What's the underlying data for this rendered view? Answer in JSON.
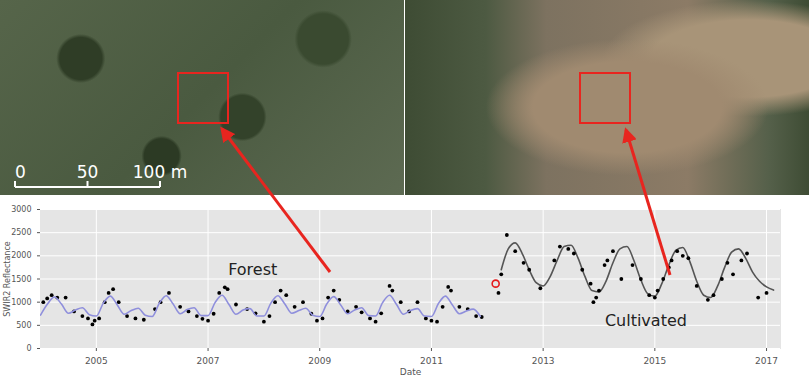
{
  "chart_data": {
    "type": "line",
    "x_label": "Date",
    "y_label": "SWIR2 Reflectance",
    "xlim": [
      2004,
      2017.25
    ],
    "xticks": [
      2005,
      2007,
      2009,
      2011,
      2013,
      2015,
      2017
    ],
    "ylim": [
      0,
      3000
    ],
    "yticks": [
      0,
      500,
      1000,
      1500,
      2000,
      2500,
      3000
    ],
    "grid": true,
    "annotations": [
      {
        "text": "Forest",
        "x": 2007.8,
        "y": 1700
      },
      {
        "text": "Cultivated",
        "x": 2014.84,
        "y": 600
      }
    ],
    "series": [
      {
        "type": "scatter",
        "marker": "circle",
        "color": "#000000",
        "x": [
          2004.05,
          2004.12,
          2004.2,
          2004.3,
          2004.45,
          2004.6,
          2004.75,
          2004.85,
          2004.93,
          2004.97,
          2005.05,
          2005.15,
          2005.22,
          2005.3,
          2005.4,
          2005.55,
          2005.7,
          2005.85,
          2006.05,
          2006.15,
          2006.3,
          2006.5,
          2006.65,
          2006.8,
          2006.9,
          2007.0,
          2007.1,
          2007.2,
          2007.3,
          2007.35,
          2007.5,
          2007.7,
          2007.85,
          2008.0,
          2008.1,
          2008.2,
          2008.3,
          2008.4,
          2008.55,
          2008.7,
          2008.85,
          2008.95,
          2009.05,
          2009.15,
          2009.25,
          2009.35,
          2009.5,
          2009.65,
          2009.75,
          2009.9,
          2010.0,
          2010.1,
          2010.25,
          2010.3,
          2010.45,
          2010.6,
          2010.75,
          2010.9,
          2011.0,
          2011.1,
          2011.2,
          2011.3,
          2011.35,
          2011.5,
          2011.65,
          2011.8,
          2011.9
        ],
        "values": [
          1000,
          1080,
          1150,
          1100,
          1100,
          800,
          700,
          650,
          520,
          600,
          650,
          1000,
          1200,
          1280,
          1000,
          700,
          650,
          620,
          850,
          1000,
          1200,
          900,
          800,
          700,
          640,
          600,
          750,
          1200,
          1320,
          1280,
          950,
          850,
          760,
          580,
          700,
          1000,
          1250,
          1150,
          900,
          1000,
          750,
          600,
          650,
          1100,
          1250,
          1050,
          800,
          900,
          780,
          650,
          580,
          760,
          1350,
          1250,
          1000,
          800,
          1000,
          650,
          600,
          580,
          900,
          1330,
          1250,
          900,
          850,
          700,
          680
        ]
      },
      {
        "type": "line",
        "color": "#8f8fdc",
        "x": [
          2004,
          2004.125,
          2004.25,
          2004.375,
          2004.5,
          2004.625,
          2004.75,
          2004.875,
          2005,
          2005.125,
          2005.25,
          2005.375,
          2005.5,
          2005.625,
          2005.75,
          2005.875,
          2006,
          2006.125,
          2006.25,
          2006.375,
          2006.5,
          2006.625,
          2006.75,
          2006.875,
          2007,
          2007.125,
          2007.25,
          2007.375,
          2007.5,
          2007.625,
          2007.75,
          2007.875,
          2008,
          2008.125,
          2008.25,
          2008.375,
          2008.5,
          2008.625,
          2008.75,
          2008.875,
          2009,
          2009.125,
          2009.25,
          2009.375,
          2009.5,
          2009.625,
          2009.75,
          2009.875,
          2010,
          2010.125,
          2010.25,
          2010.375,
          2010.5,
          2010.625,
          2010.75,
          2010.875,
          2011,
          2011.125,
          2011.25,
          2011.375,
          2011.5,
          2011.625,
          2011.75,
          2011.875
        ],
        "values": [
          720,
          960,
          1110,
          960,
          760,
          830,
          880,
          730,
          700,
          980,
          1130,
          940,
          740,
          820,
          870,
          720,
          690,
          970,
          1140,
          960,
          750,
          840,
          880,
          710,
          710,
          990,
          1150,
          950,
          740,
          830,
          860,
          700,
          700,
          980,
          1140,
          960,
          760,
          820,
          870,
          720,
          690,
          960,
          1120,
          940,
          750,
          830,
          880,
          710,
          700,
          990,
          1150,
          950,
          740,
          820,
          860,
          700,
          690,
          970,
          1130,
          940,
          750,
          810,
          850,
          690
        ]
      },
      {
        "type": "line",
        "color": "#555555",
        "x": [
          2012.25,
          2012.375,
          2012.5,
          2012.625,
          2012.75,
          2012.875,
          2013,
          2013.125,
          2013.25,
          2013.375,
          2013.5,
          2013.625,
          2013.75,
          2013.875,
          2014,
          2014.125,
          2014.25,
          2014.375,
          2014.5,
          2014.625,
          2014.75,
          2014.875,
          2015,
          2015.125,
          2015.25,
          2015.375,
          2015.5,
          2015.625,
          2015.75,
          2015.875,
          2016,
          2016.125,
          2016.25,
          2016.375,
          2016.5,
          2016.625,
          2016.75,
          2016.875,
          2017,
          2017.125
        ],
        "values": [
          1700,
          2150,
          2280,
          2050,
          1700,
          1420,
          1350,
          1550,
          1900,
          2200,
          2230,
          1950,
          1550,
          1250,
          1220,
          1450,
          1850,
          2150,
          2200,
          1900,
          1480,
          1180,
          1130,
          1400,
          1800,
          2120,
          2180,
          1880,
          1450,
          1150,
          1100,
          1350,
          1750,
          2080,
          2150,
          1950,
          1650,
          1450,
          1330,
          1260
        ]
      },
      {
        "type": "scatter",
        "marker": "circle",
        "color": "#000000",
        "x": [
          2012.2,
          2012.25,
          2012.35,
          2012.5,
          2012.65,
          2012.75,
          2012.95,
          2013.2,
          2013.3,
          2013.45,
          2013.55,
          2013.7,
          2013.85,
          2013.9,
          2013.95,
          2014.0,
          2014.1,
          2014.15,
          2014.25,
          2014.4,
          2014.6,
          2014.75,
          2014.9,
          2015.0,
          2015.05,
          2015.15,
          2015.25,
          2015.3,
          2015.4,
          2015.5,
          2015.6,
          2015.75,
          2015.95,
          2016.05,
          2016.2,
          2016.3,
          2016.4,
          2016.55,
          2016.65,
          2016.85,
          2017.0
        ],
        "values": [
          1200,
          1600,
          2450,
          2100,
          1850,
          1700,
          1300,
          1900,
          2200,
          2150,
          2050,
          1700,
          1400,
          1000,
          1100,
          1250,
          1800,
          1900,
          2100,
          1500,
          1800,
          1500,
          1150,
          1100,
          1250,
          1500,
          1750,
          1900,
          2100,
          2000,
          1950,
          1350,
          1050,
          1150,
          1500,
          1850,
          1600,
          1900,
          2050,
          1100,
          1200
        ]
      },
      {
        "type": "scatter",
        "marker": "open_circle",
        "color": "#e41a1c",
        "x": [
          2012.15
        ],
        "values": [
          1400
        ]
      }
    ]
  },
  "scale_bar": {
    "ticks": [
      0,
      50,
      {
        "value": 100,
        "label": "100 m"
      }
    ]
  }
}
